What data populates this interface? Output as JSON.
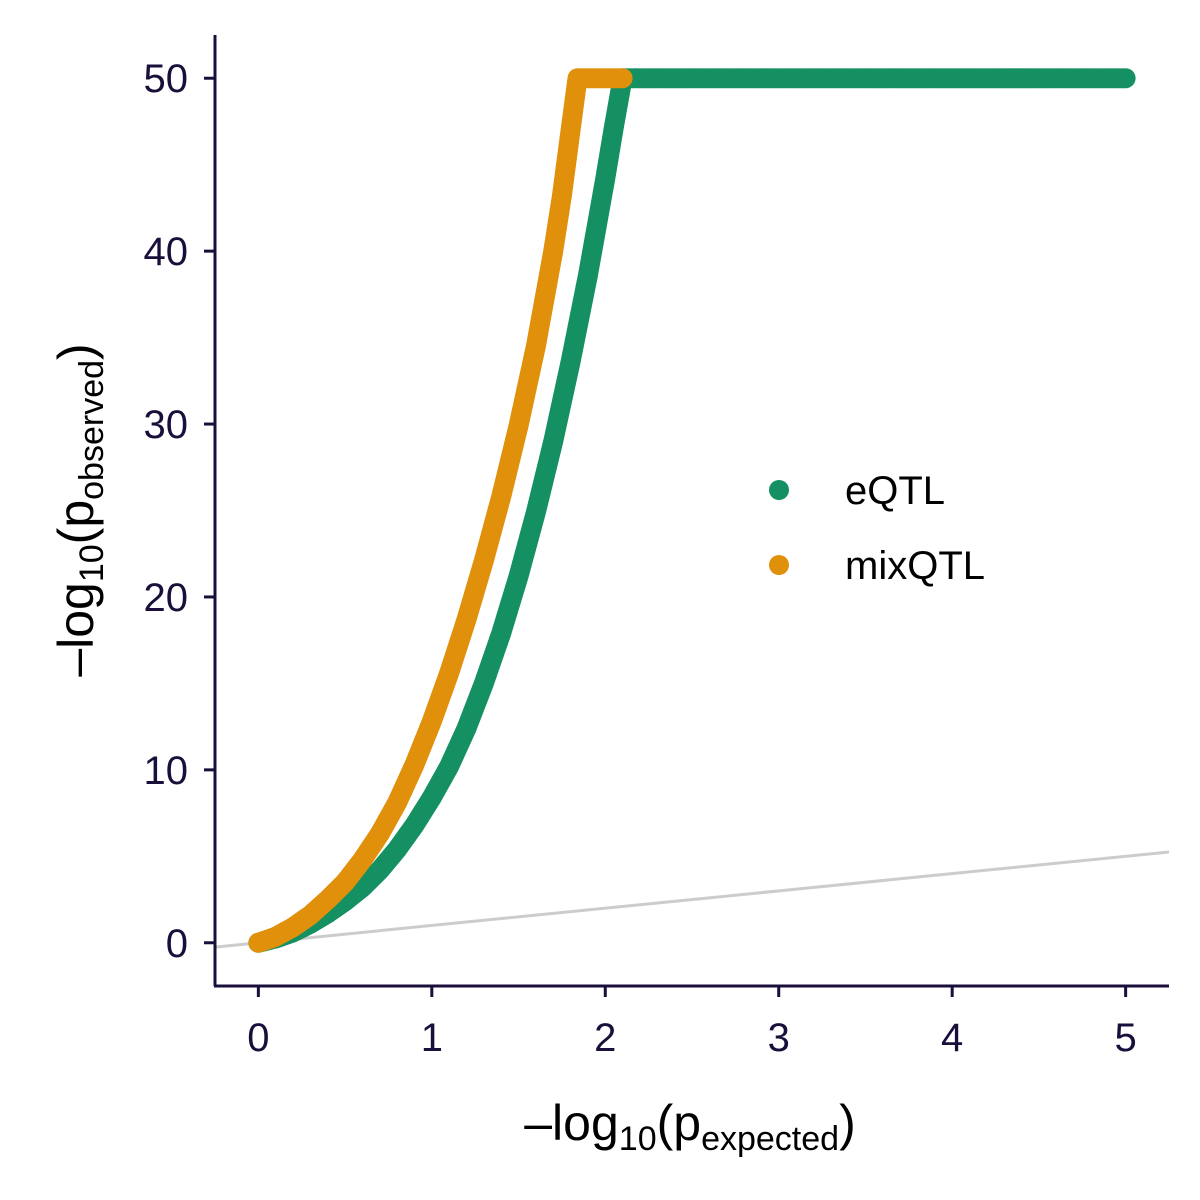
{
  "chart_data": {
    "type": "scatter",
    "title": "",
    "xlabel": {
      "prefix": "–log",
      "sub1": "10",
      "open": "(p",
      "sub2": "expected",
      "close": ")"
    },
    "ylabel": {
      "prefix": "–log",
      "sub1": "10",
      "open": "(p",
      "sub2": "observed",
      "close": ")"
    },
    "xlim": [
      -0.25,
      5.25
    ],
    "ylim": [
      -2.5,
      52.5
    ],
    "x_ticks": [
      0,
      1,
      2,
      3,
      4,
      5
    ],
    "x_tick_labels": [
      "0",
      "1",
      "2",
      "3",
      "4",
      "5"
    ],
    "y_ticks": [
      0,
      10,
      20,
      30,
      40,
      50
    ],
    "y_tick_labels": [
      "0",
      "10",
      "20",
      "30",
      "40",
      "50"
    ],
    "grid": false,
    "legend_position": "right-center",
    "reference_line": {
      "slope": 1,
      "intercept": 0,
      "color": "#cccccc"
    },
    "series": [
      {
        "name": "eQTL",
        "color": "#159062",
        "points": [
          [
            0,
            0
          ],
          [
            0.1,
            0.25
          ],
          [
            0.2,
            0.6
          ],
          [
            0.3,
            1.1
          ],
          [
            0.4,
            1.7
          ],
          [
            0.5,
            2.4
          ],
          [
            0.6,
            3.2
          ],
          [
            0.7,
            4.2
          ],
          [
            0.8,
            5.4
          ],
          [
            0.9,
            6.8
          ],
          [
            1.0,
            8.4
          ],
          [
            1.1,
            10.2
          ],
          [
            1.2,
            12.4
          ],
          [
            1.3,
            15.0
          ],
          [
            1.4,
            17.9
          ],
          [
            1.5,
            21.2
          ],
          [
            1.6,
            24.9
          ],
          [
            1.7,
            29.0
          ],
          [
            1.8,
            33.6
          ],
          [
            1.9,
            38.6
          ],
          [
            2.0,
            44.2
          ],
          [
            2.05,
            47.2
          ],
          [
            2.1,
            50
          ],
          [
            2.5,
            50
          ],
          [
            3.0,
            50
          ],
          [
            3.5,
            50
          ],
          [
            3.9,
            50
          ],
          [
            4.0,
            50
          ],
          [
            4.05,
            50
          ],
          [
            4.1,
            50
          ],
          [
            4.15,
            50
          ],
          [
            4.2,
            50
          ],
          [
            4.25,
            50
          ],
          [
            4.3,
            50
          ],
          [
            4.37,
            50
          ],
          [
            4.44,
            50
          ],
          [
            4.52,
            50
          ],
          [
            4.69,
            50
          ],
          [
            5.0,
            50
          ]
        ]
      },
      {
        "name": "mixQTL",
        "color": "#e0900a",
        "points": [
          [
            0,
            0
          ],
          [
            0.1,
            0.35
          ],
          [
            0.2,
            0.9
          ],
          [
            0.3,
            1.6
          ],
          [
            0.4,
            2.5
          ],
          [
            0.5,
            3.5
          ],
          [
            0.6,
            4.8
          ],
          [
            0.7,
            6.3
          ],
          [
            0.8,
            8.1
          ],
          [
            0.9,
            10.3
          ],
          [
            1.0,
            12.8
          ],
          [
            1.1,
            15.6
          ],
          [
            1.2,
            18.7
          ],
          [
            1.3,
            22.1
          ],
          [
            1.4,
            25.8
          ],
          [
            1.5,
            29.9
          ],
          [
            1.6,
            34.5
          ],
          [
            1.7,
            40.0
          ],
          [
            1.75,
            43.2
          ],
          [
            1.8,
            47.0
          ],
          [
            1.84,
            50
          ],
          [
            2.1,
            50
          ]
        ]
      }
    ]
  }
}
